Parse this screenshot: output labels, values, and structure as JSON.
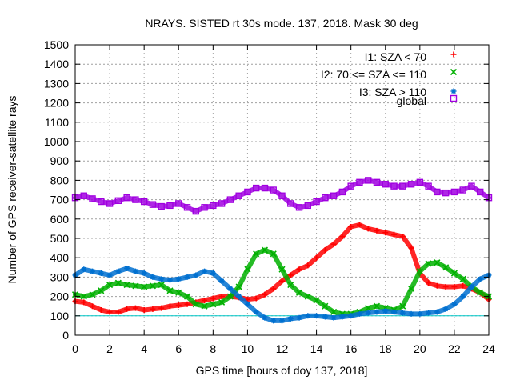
{
  "chart_data": {
    "type": "scatter",
    "title": "NRAYS. SISTED rt 30s mode. 137, 2018. Mask 30 deg",
    "xlabel": "GPS time [hours of doy 137, 2018]",
    "ylabel": "Number of GPS receiver-satellite rays",
    "xlim": [
      0,
      24
    ],
    "ylim": [
      0,
      1500
    ],
    "xticks": [
      0,
      2,
      4,
      6,
      8,
      10,
      12,
      14,
      16,
      18,
      20,
      22,
      24
    ],
    "yticks": [
      0,
      100,
      200,
      300,
      400,
      500,
      600,
      700,
      800,
      900,
      1000,
      1100,
      1200,
      1300,
      1400,
      1500
    ],
    "grid": true,
    "legend_position": "top-right",
    "threshold": {
      "y": 100,
      "color": "#00c8c8"
    },
    "series": [
      {
        "name": "I1: SZA < 70",
        "color": "#ff0000",
        "marker": "plus",
        "x": [
          0,
          0.5,
          1,
          1.5,
          2,
          2.5,
          3,
          3.5,
          4,
          4.5,
          5,
          5.5,
          6,
          6.5,
          7,
          7.5,
          8,
          8.5,
          9,
          9.5,
          10,
          10.5,
          11,
          11.5,
          12,
          12.5,
          13,
          13.5,
          14,
          14.5,
          15,
          15.5,
          16,
          16.5,
          17,
          17.5,
          18,
          18.5,
          19,
          19.5,
          20,
          20.5,
          21,
          21.5,
          22,
          22.5,
          23,
          23.5,
          24
        ],
        "values": [
          175,
          170,
          150,
          130,
          120,
          120,
          135,
          140,
          130,
          135,
          140,
          150,
          155,
          160,
          170,
          180,
          190,
          200,
          200,
          195,
          185,
          190,
          210,
          240,
          280,
          310,
          340,
          360,
          400,
          440,
          470,
          510,
          560,
          570,
          550,
          540,
          530,
          520,
          510,
          450,
          320,
          270,
          255,
          250,
          250,
          255,
          240,
          220,
          185
        ]
      },
      {
        "name": "I2: 70 <= SZA <= 110",
        "color": "#00b000",
        "marker": "cross",
        "x": [
          0,
          0.5,
          1,
          1.5,
          2,
          2.5,
          3,
          3.5,
          4,
          4.5,
          5,
          5.5,
          6,
          6.5,
          7,
          7.5,
          8,
          8.5,
          9,
          9.5,
          10,
          10.5,
          11,
          11.5,
          12,
          12.5,
          13,
          13.5,
          14,
          14.5,
          15,
          15.5,
          16,
          16.5,
          17,
          17.5,
          18,
          18.5,
          19,
          19.5,
          20,
          20.5,
          21,
          21.5,
          22,
          22.5,
          23,
          23.5,
          24
        ],
        "values": [
          210,
          200,
          210,
          230,
          260,
          270,
          260,
          255,
          250,
          255,
          260,
          230,
          220,
          200,
          160,
          150,
          160,
          170,
          200,
          250,
          340,
          420,
          440,
          420,
          340,
          260,
          220,
          200,
          180,
          150,
          120,
          110,
          110,
          120,
          140,
          150,
          140,
          130,
          150,
          240,
          330,
          370,
          375,
          350,
          320,
          290,
          250,
          220,
          200
        ]
      },
      {
        "name": "I3: SZA > 110",
        "color": "#0070d0",
        "marker": "star",
        "x": [
          0,
          0.5,
          1,
          1.5,
          2,
          2.5,
          3,
          3.5,
          4,
          4.5,
          5,
          5.5,
          6,
          6.5,
          7,
          7.5,
          8,
          8.5,
          9,
          9.5,
          10,
          10.5,
          11,
          11.5,
          12,
          12.5,
          13,
          13.5,
          14,
          14.5,
          15,
          15.5,
          16,
          16.5,
          17,
          17.5,
          18,
          18.5,
          19,
          19.5,
          20,
          20.5,
          21,
          21.5,
          22,
          22.5,
          23,
          23.5,
          24
        ],
        "values": [
          310,
          340,
          330,
          320,
          310,
          330,
          345,
          330,
          320,
          300,
          290,
          285,
          290,
          300,
          310,
          330,
          320,
          280,
          240,
          200,
          160,
          120,
          90,
          75,
          75,
          85,
          90,
          100,
          100,
          95,
          90,
          95,
          100,
          110,
          115,
          120,
          125,
          120,
          115,
          110,
          110,
          115,
          120,
          135,
          160,
          200,
          250,
          290,
          310
        ]
      },
      {
        "name": "global",
        "color": "#a000e0",
        "marker": "square",
        "x": [
          0,
          0.5,
          1,
          1.5,
          2,
          2.5,
          3,
          3.5,
          4,
          4.5,
          5,
          5.5,
          6,
          6.5,
          7,
          7.5,
          8,
          8.5,
          9,
          9.5,
          10,
          10.5,
          11,
          11.5,
          12,
          12.5,
          13,
          13.5,
          14,
          14.5,
          15,
          15.5,
          16,
          16.5,
          17,
          17.5,
          18,
          18.5,
          19,
          19.5,
          20,
          20.5,
          21,
          21.5,
          22,
          22.5,
          23,
          23.5,
          24
        ],
        "values": [
          710,
          720,
          705,
          690,
          680,
          695,
          710,
          700,
          690,
          675,
          665,
          670,
          680,
          660,
          640,
          660,
          670,
          680,
          700,
          720,
          740,
          760,
          760,
          750,
          720,
          680,
          660,
          670,
          690,
          710,
          720,
          740,
          770,
          790,
          800,
          790,
          780,
          770,
          770,
          780,
          790,
          770,
          740,
          735,
          740,
          750,
          770,
          740,
          710
        ]
      }
    ]
  }
}
